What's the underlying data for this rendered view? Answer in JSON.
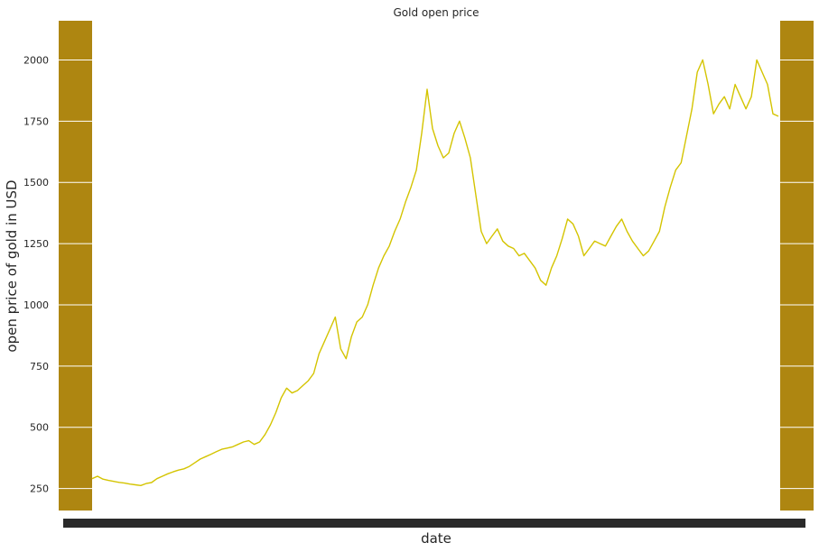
{
  "chart_data": {
    "type": "line",
    "title": "Gold open price",
    "xlabel": "date",
    "ylabel": "open price of gold in USD",
    "ylim": [
      160,
      2160
    ],
    "yticks": [
      250,
      500,
      750,
      1000,
      1250,
      1500,
      1750,
      2000
    ],
    "x_ticks_legible": false,
    "grid": true,
    "legend": "none",
    "colors": {
      "line": "#d4c400",
      "side_bars": "#ae8611",
      "grid": "#ffffff",
      "tick_text": "#262626"
    },
    "series": [
      {
        "values": [
          290,
          300,
          288,
          283,
          279,
          275,
          272,
          268,
          265,
          262,
          270,
          274,
          290,
          300,
          310,
          318,
          325,
          330,
          340,
          355,
          370,
          380,
          390,
          400,
          410,
          415,
          420,
          430,
          440,
          445,
          430,
          440,
          470,
          510,
          560,
          620,
          660,
          640,
          650,
          670,
          690,
          720,
          800,
          850,
          900,
          950,
          820,
          780,
          870,
          930,
          950,
          1000,
          1080,
          1150,
          1200,
          1240,
          1300,
          1350,
          1420,
          1480,
          1550,
          1700,
          1880,
          1720,
          1650,
          1600,
          1620,
          1700,
          1750,
          1680,
          1600,
          1450,
          1300,
          1250,
          1280,
          1310,
          1260,
          1240,
          1230,
          1200,
          1210,
          1180,
          1150,
          1100,
          1080,
          1150,
          1200,
          1270,
          1350,
          1330,
          1280,
          1200,
          1230,
          1260,
          1250,
          1240,
          1280,
          1320,
          1350,
          1300,
          1260,
          1230,
          1200,
          1220,
          1260,
          1300,
          1400,
          1480,
          1550,
          1580,
          1690,
          1800,
          1950,
          2000,
          1900,
          1780,
          1820,
          1850,
          1800,
          1900,
          1850,
          1800,
          1850,
          2000,
          1950,
          1900,
          1780,
          1770
        ]
      }
    ]
  }
}
